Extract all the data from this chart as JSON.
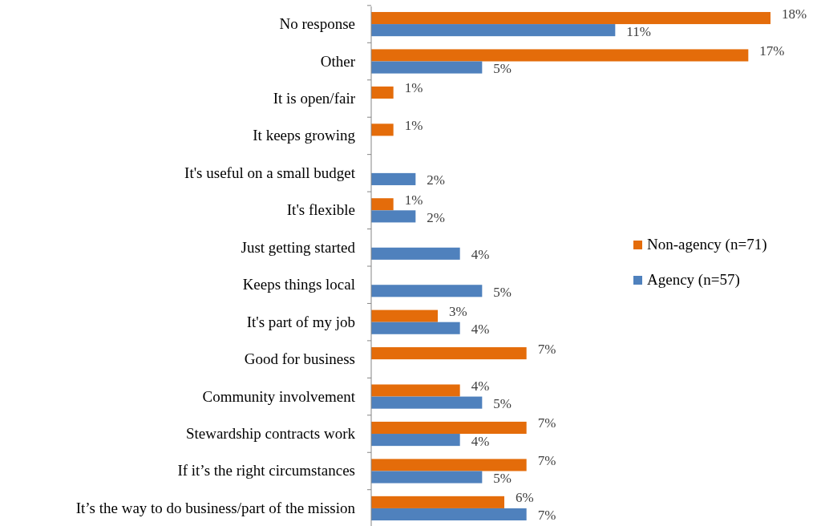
{
  "chart_data": {
    "type": "bar",
    "orientation": "horizontal",
    "legend": "right",
    "categories": [
      "No response",
      "Other",
      "It is open/fair",
      "It keeps growing",
      "It's useful on a small budget",
      "It's flexible",
      "Just getting started",
      "Keeps things local",
      "It's part of my job",
      "Good for business",
      "Community involvement",
      "Stewardship contracts work",
      "If it’s the right circumstances",
      "It’s the way to do business/part of the mission"
    ],
    "series": [
      {
        "name": "Non-agency (n=71)",
        "color": "#e46c0a",
        "values": [
          18,
          17,
          1,
          1,
          null,
          1,
          null,
          null,
          3,
          7,
          4,
          7,
          7,
          6
        ],
        "value_labels": [
          "18%",
          "17%",
          "1%",
          "1%",
          null,
          "1%",
          null,
          null,
          "3%",
          "7%",
          "4%",
          "7%",
          "7%",
          "6%"
        ]
      },
      {
        "name": "Agency (n=57)",
        "color": "#4f81bd",
        "values": [
          11,
          5,
          null,
          null,
          2,
          2,
          4,
          5,
          4,
          null,
          5,
          4,
          5,
          7
        ],
        "value_labels": [
          "11%",
          "5%",
          null,
          null,
          "2%",
          "2%",
          "4%",
          "5%",
          "4%",
          null,
          "5%",
          "4%",
          "5%",
          "7%"
        ]
      }
    ]
  }
}
